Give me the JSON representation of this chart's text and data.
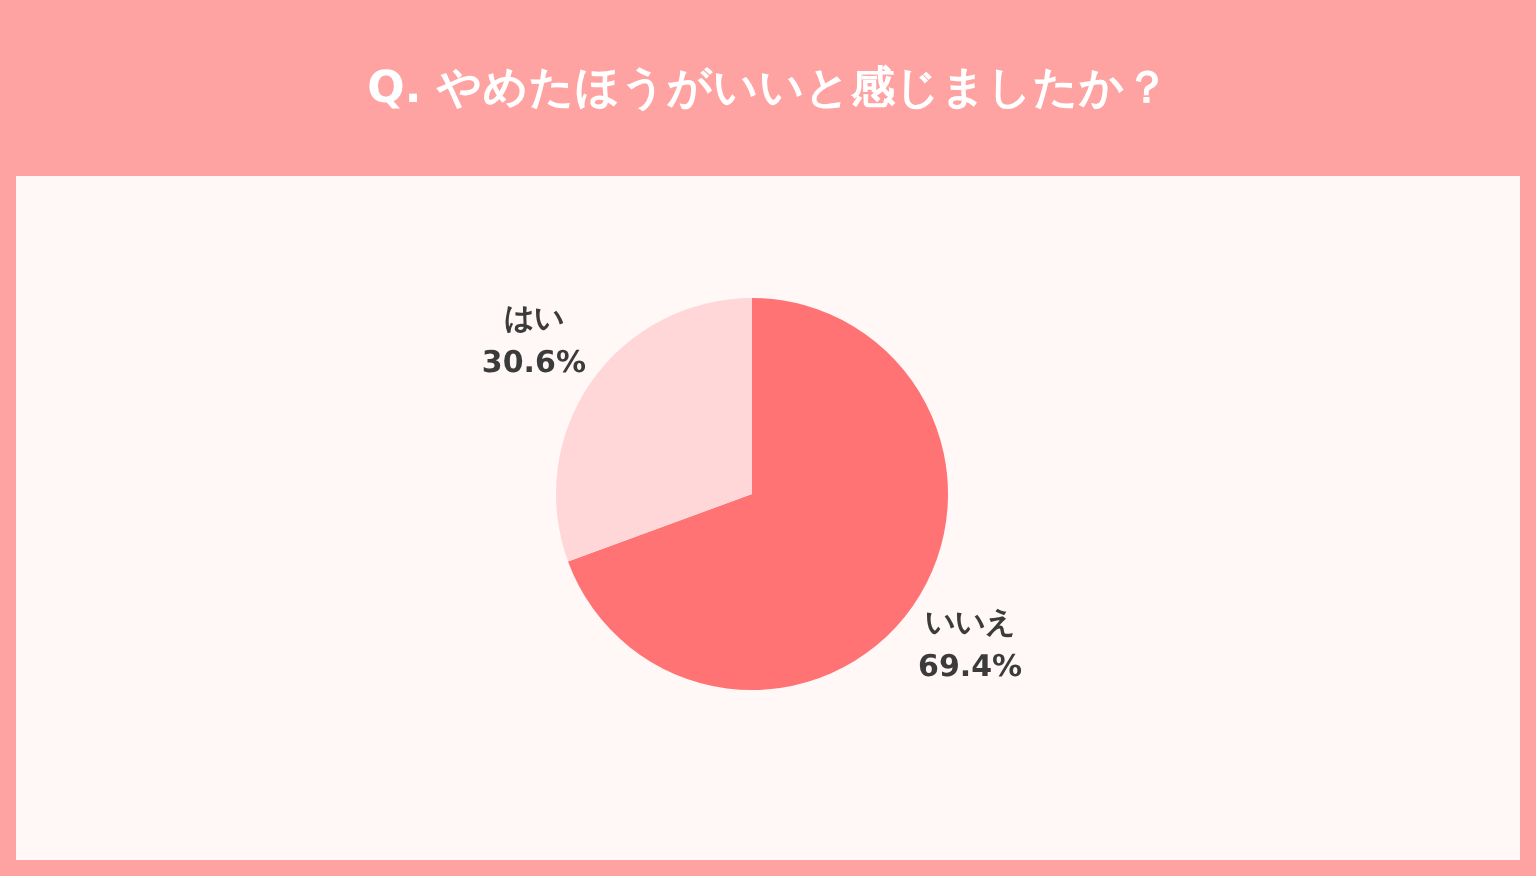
{
  "chart_data": {
    "type": "pie",
    "title": "Q. やめたほうがいいと感じましたか？",
    "categories": [
      "いいえ",
      "はい"
    ],
    "values": [
      69.4,
      30.6
    ],
    "colors": [
      "#ff7374",
      "#ffd7d9"
    ],
    "value_labels": [
      "69.4%",
      "30.6%"
    ],
    "legend": false
  }
}
